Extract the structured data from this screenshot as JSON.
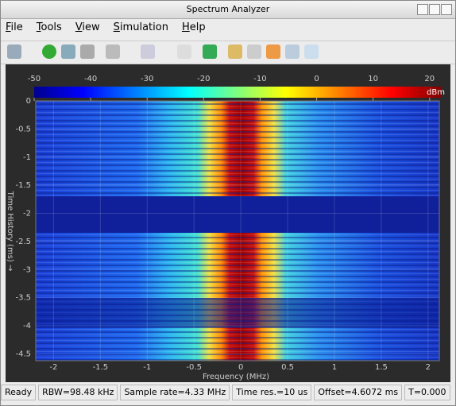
{
  "window": {
    "title": "Spectrum Analyzer"
  },
  "menu": [
    "File",
    "Tools",
    "View",
    "Simulation",
    "Help"
  ],
  "colorbar": {
    "unit": "dBm",
    "lim": [
      -50,
      22
    ],
    "ticks": [
      -50,
      -40,
      -30,
      -20,
      -10,
      0,
      10,
      20
    ]
  },
  "plot": {
    "x_label": "Frequency (MHz)",
    "y_label": "Time History (ms) →",
    "xlim": [
      -2.19,
      2.12
    ],
    "xticks": [
      -2,
      -1.5,
      -1,
      -0.5,
      0,
      0.5,
      1,
      1.5,
      2
    ],
    "ylim": [
      -4.62,
      0
    ],
    "yticks": [
      0,
      -0.5,
      -1,
      -1.5,
      -2,
      -2.5,
      -3,
      -3.5,
      -4,
      -4.5
    ]
  },
  "status": [
    "Ready",
    "RBW=98.48 kHz",
    "Sample rate=4.33 MHz",
    "Time res.=10 us",
    "Offset=4.6072 ms",
    "T=0.000"
  ]
}
